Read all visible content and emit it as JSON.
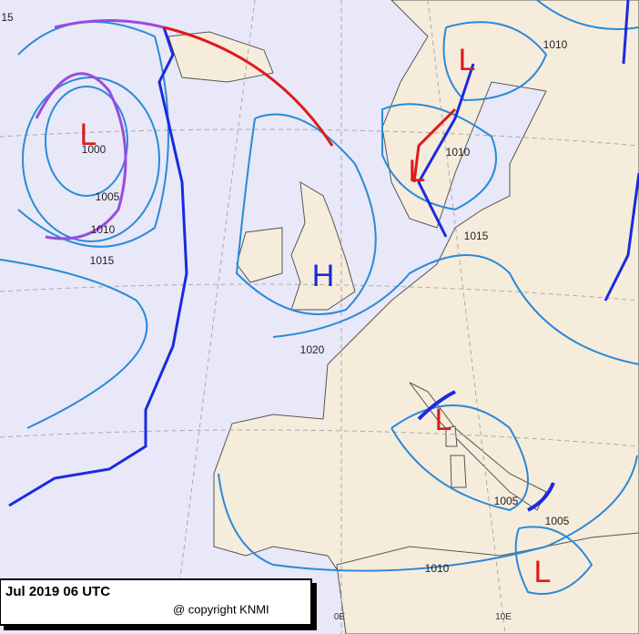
{
  "isobar_labels": [
    "15",
    "1010",
    "1000",
    "1005",
    "1010",
    "1015",
    "1010",
    "1015",
    "1020",
    "1005",
    "1005",
    "1010"
  ],
  "pressure_centers": [
    "L",
    "L",
    "L",
    "H",
    "L",
    "L"
  ],
  "meridian_labels": [
    "0E",
    "10E"
  ],
  "footer": {
    "title": "Jul 2019 06 UTC",
    "copyright": "@ copyright KNMI"
  }
}
